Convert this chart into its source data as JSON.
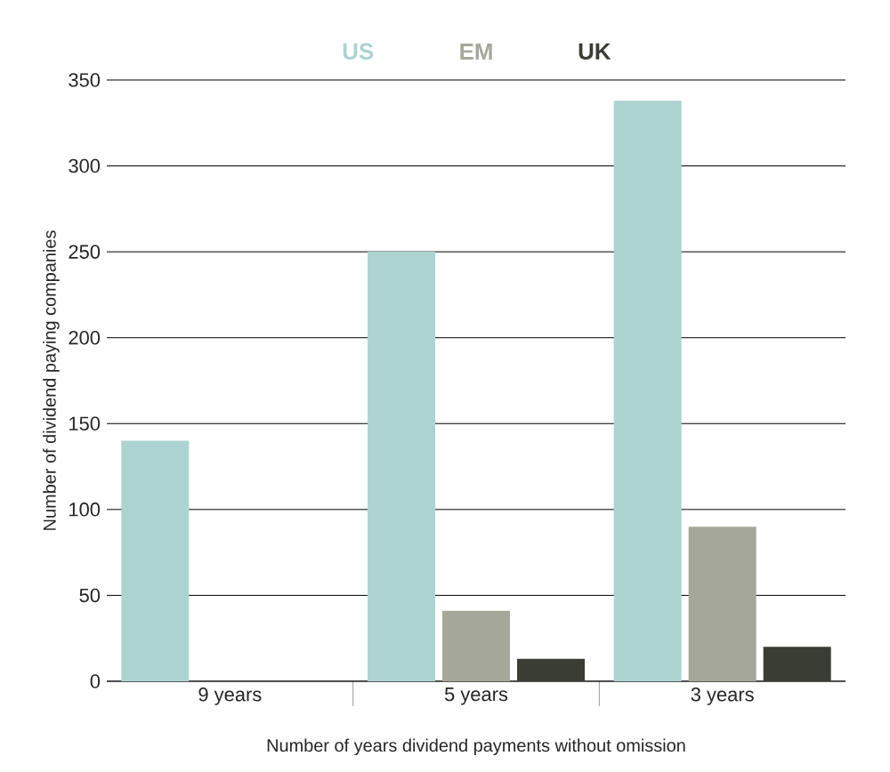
{
  "chart_data": {
    "type": "bar",
    "xlabel": "Number of years dividend payments without omission",
    "ylabel": "Number of dividend paying companies",
    "categories": [
      "9 years",
      "5 years",
      "3 years"
    ],
    "series": [
      {
        "name": "US",
        "color": "#acd3d1",
        "values": [
          140,
          250,
          338
        ]
      },
      {
        "name": "EM",
        "color": "#a6a79b",
        "values": [
          null,
          41,
          90
        ]
      },
      {
        "name": "UK",
        "color": "#3a3d33",
        "values": [
          null,
          13,
          20
        ]
      }
    ],
    "ylim": [
      0,
      350
    ],
    "yticks": [
      0,
      50,
      100,
      150,
      200,
      250,
      300,
      350
    ],
    "grid": "y",
    "legend": "top"
  }
}
